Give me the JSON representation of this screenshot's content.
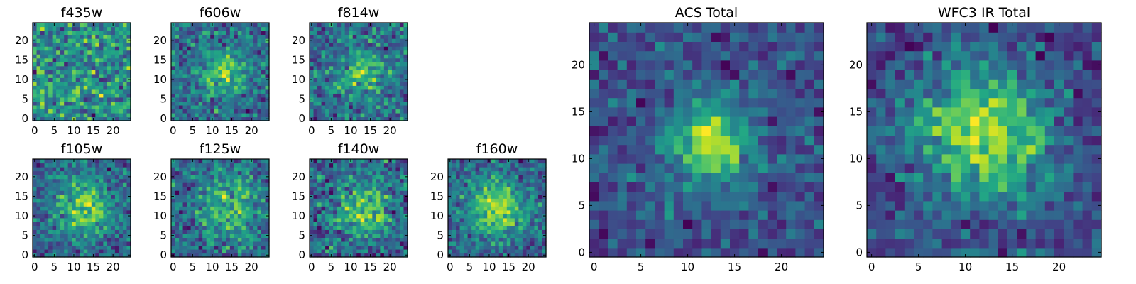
{
  "chart_data": [
    {
      "type": "heatmap",
      "title": "f435w",
      "xlim": [
        -0.5,
        24.5
      ],
      "ylim": [
        -0.5,
        24.5
      ],
      "xticks": [
        0,
        5,
        10,
        15,
        20
      ],
      "yticks": [
        0,
        5,
        10,
        15,
        20
      ],
      "grid": false,
      "size": 25,
      "colormap": "viridis",
      "seed": 11,
      "blob": {
        "x": 12,
        "y": 12,
        "sigma": 6,
        "amp": 0.0
      },
      "noise": 1.0
    },
    {
      "type": "heatmap",
      "title": "f606w",
      "xlim": [
        -0.5,
        24.5
      ],
      "ylim": [
        -0.5,
        24.5
      ],
      "xticks": [
        0,
        5,
        10,
        15,
        20
      ],
      "yticks": [
        0,
        5,
        10,
        15,
        20
      ],
      "grid": false,
      "size": 25,
      "colormap": "viridis",
      "seed": 23,
      "blob": {
        "x": 13,
        "y": 12,
        "sigma": 4,
        "amp": 0.6
      },
      "noise": 1.0
    },
    {
      "type": "heatmap",
      "title": "f814w",
      "xlim": [
        -0.5,
        24.5
      ],
      "ylim": [
        -0.5,
        24.5
      ],
      "xticks": [
        0,
        5,
        10,
        15,
        20
      ],
      "yticks": [
        0,
        5,
        10,
        15,
        20
      ],
      "grid": false,
      "size": 25,
      "colormap": "viridis",
      "seed": 37,
      "blob": {
        "x": 13,
        "y": 12,
        "sigma": 4,
        "amp": 0.5
      },
      "noise": 1.0
    },
    {
      "type": "heatmap",
      "title": "f105w",
      "xlim": [
        -0.5,
        24.5
      ],
      "ylim": [
        -0.5,
        24.5
      ],
      "xticks": [
        0,
        5,
        10,
        15,
        20
      ],
      "yticks": [
        0,
        5,
        10,
        15,
        20
      ],
      "grid": false,
      "size": 25,
      "colormap": "viridis",
      "seed": 41,
      "blob": {
        "x": 13,
        "y": 12,
        "sigma": 5,
        "amp": 0.7
      },
      "noise": 0.9
    },
    {
      "type": "heatmap",
      "title": "f125w",
      "xlim": [
        -0.5,
        24.5
      ],
      "ylim": [
        -0.5,
        24.5
      ],
      "xticks": [
        0,
        5,
        10,
        15,
        20
      ],
      "yticks": [
        0,
        5,
        10,
        15,
        20
      ],
      "grid": false,
      "size": 25,
      "colormap": "viridis",
      "seed": 53,
      "blob": {
        "x": 14,
        "y": 12,
        "sigma": 5,
        "amp": 0.5
      },
      "noise": 1.0
    },
    {
      "type": "heatmap",
      "title": "f140w",
      "xlim": [
        -0.5,
        24.5
      ],
      "ylim": [
        -0.5,
        24.5
      ],
      "xticks": [
        0,
        5,
        10,
        15,
        20
      ],
      "yticks": [
        0,
        5,
        10,
        15,
        20
      ],
      "grid": false,
      "size": 25,
      "colormap": "viridis",
      "seed": 67,
      "blob": {
        "x": 13,
        "y": 12,
        "sigma": 5,
        "amp": 0.6
      },
      "noise": 1.0
    },
    {
      "type": "heatmap",
      "title": "f160w",
      "xlim": [
        -0.5,
        24.5
      ],
      "ylim": [
        -0.5,
        24.5
      ],
      "xticks": [
        0,
        5,
        10,
        15,
        20
      ],
      "yticks": [
        0,
        5,
        10,
        15,
        20
      ],
      "grid": false,
      "size": 25,
      "colormap": "viridis",
      "seed": 79,
      "blob": {
        "x": 12,
        "y": 12,
        "sigma": 5,
        "amp": 0.8
      },
      "noise": 0.9
    },
    {
      "type": "heatmap",
      "title": "ACS Total",
      "xlim": [
        -0.5,
        24.5
      ],
      "ylim": [
        -0.5,
        24.5
      ],
      "xticks": [
        0,
        5,
        10,
        15,
        20
      ],
      "yticks": [
        0,
        5,
        10,
        15,
        20
      ],
      "grid": false,
      "size": 25,
      "colormap": "viridis",
      "seed": 91,
      "blob": {
        "x": 12.5,
        "y": 11.5,
        "sigma": 3,
        "amp": 1.2
      },
      "noise": 0.9
    },
    {
      "type": "heatmap",
      "title": "WFC3 IR Total",
      "xlim": [
        -0.5,
        24.5
      ],
      "ylim": [
        -0.5,
        24.5
      ],
      "xticks": [
        0,
        5,
        10,
        15,
        20
      ],
      "yticks": [
        0,
        5,
        10,
        15,
        20
      ],
      "grid": false,
      "size": 25,
      "colormap": "viridis",
      "seed": 103,
      "blob": {
        "x": 12,
        "y": 13,
        "sigma": 5,
        "amp": 1.0
      },
      "noise": 0.8
    }
  ]
}
